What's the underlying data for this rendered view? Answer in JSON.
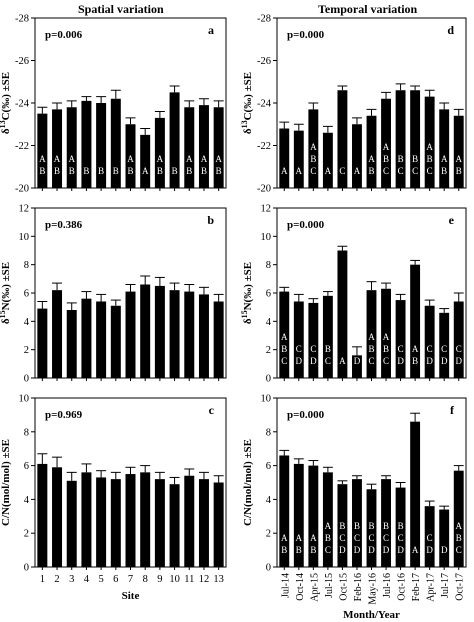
{
  "figure": {
    "left_title": "Spatial variation",
    "right_title": "Temporal variation",
    "left_xlabel": "Site",
    "right_xlabel": "Month/Year"
  },
  "chart_data": [
    {
      "id": "a",
      "type": "bar",
      "panel_label": "a",
      "pvalue": "p=0.006",
      "ylabel": "δ13C(‰) ±SE",
      "ylim": [
        -20,
        -28
      ],
      "inverted_y": true,
      "yticks": [
        "-20",
        "-22",
        "-24",
        "-26",
        "-28"
      ],
      "categories": [
        "1",
        "2",
        "3",
        "4",
        "5",
        "6",
        "7",
        "8",
        "9",
        "10",
        "11",
        "12",
        "13"
      ],
      "values": [
        -23.5,
        -23.7,
        -23.8,
        -24.1,
        -24.0,
        -24.2,
        -23.0,
        -22.5,
        -23.3,
        -24.5,
        -23.8,
        -23.9,
        -23.8
      ],
      "errors": [
        0.3,
        0.3,
        0.3,
        0.2,
        0.3,
        0.4,
        0.3,
        0.3,
        0.3,
        0.3,
        0.3,
        0.3,
        0.3
      ],
      "group_letters": [
        "A B",
        "A B",
        "A B",
        "B",
        "B",
        "B",
        "A B",
        "A",
        "A B",
        "B",
        "A B",
        "A B",
        "A B"
      ]
    },
    {
      "id": "b",
      "type": "bar",
      "panel_label": "b",
      "pvalue": "p=0.386",
      "ylabel": "δ15N(‰) ±SE",
      "ylim": [
        0,
        12
      ],
      "yticks": [
        "0",
        "2",
        "4",
        "6",
        "8",
        "10",
        "12"
      ],
      "categories": [
        "1",
        "2",
        "3",
        "4",
        "5",
        "6",
        "7",
        "8",
        "9",
        "10",
        "11",
        "12",
        "13"
      ],
      "values": [
        4.9,
        6.2,
        4.8,
        5.6,
        5.4,
        5.1,
        6.1,
        6.6,
        6.5,
        6.2,
        6.1,
        5.9,
        5.4
      ],
      "errors": [
        0.5,
        0.5,
        0.5,
        0.5,
        0.5,
        0.4,
        0.5,
        0.6,
        0.6,
        0.5,
        0.5,
        0.5,
        0.5
      ],
      "group_letters": []
    },
    {
      "id": "c",
      "type": "bar",
      "panel_label": "c",
      "pvalue": "p=0.969",
      "ylabel": "C/N(mol/mol) ±SE",
      "ylim": [
        0,
        10
      ],
      "yticks": [
        "0",
        "2",
        "4",
        "6",
        "8",
        "10"
      ],
      "categories": [
        "1",
        "2",
        "3",
        "4",
        "5",
        "6",
        "7",
        "8",
        "9",
        "10",
        "11",
        "12",
        "13"
      ],
      "values": [
        6.1,
        5.9,
        5.1,
        5.6,
        5.3,
        5.2,
        5.5,
        5.6,
        5.2,
        4.9,
        5.4,
        5.2,
        5.0
      ],
      "errors": [
        0.6,
        0.6,
        0.5,
        0.5,
        0.4,
        0.4,
        0.4,
        0.4,
        0.4,
        0.4,
        0.4,
        0.4,
        0.4
      ],
      "group_letters": []
    },
    {
      "id": "d",
      "type": "bar",
      "panel_label": "d",
      "pvalue": "p=0.000",
      "ylabel": "δ13C(‰) ±SE",
      "ylim": [
        -20,
        -28
      ],
      "inverted_y": true,
      "yticks": [
        "-20",
        "-22",
        "-24",
        "-26",
        "-28"
      ],
      "categories": [
        "Jul-14",
        "Oct-14",
        "Apr-15",
        "Jul-15",
        "Oct-15",
        "Feb-16",
        "May-16",
        "Jul-16",
        "Oct-16",
        "Feb-17",
        "Apr-17",
        "Jul-17",
        "Oct-17"
      ],
      "values": [
        -22.8,
        -22.7,
        -23.7,
        -22.6,
        -24.6,
        -23.0,
        -23.4,
        -24.2,
        -24.6,
        -24.6,
        -24.3,
        -23.7,
        -23.4
      ],
      "errors": [
        0.3,
        0.3,
        0.3,
        0.3,
        0.2,
        0.3,
        0.3,
        0.3,
        0.3,
        0.2,
        0.3,
        0.3,
        0.3
      ],
      "group_letters": [
        "A",
        "A",
        "A B C",
        "A",
        "C",
        "A",
        "A B",
        "A B C",
        "B C",
        "B C",
        "A B C",
        "A B",
        "A B"
      ]
    },
    {
      "id": "e",
      "type": "bar",
      "panel_label": "e",
      "pvalue": "p=0.000",
      "ylabel": "δ15N(‰) ±SE",
      "ylim": [
        0,
        12
      ],
      "yticks": [
        "0",
        "2",
        "4",
        "6",
        "8",
        "10",
        "12"
      ],
      "categories": [
        "Jul-14",
        "Oct-14",
        "Apr-15",
        "Jul-15",
        "Oct-15",
        "Feb-16",
        "May-16",
        "Jul-16",
        "Oct-16",
        "Feb-17",
        "Apr-17",
        "Jul-17",
        "Oct-17"
      ],
      "values": [
        6.1,
        5.4,
        5.3,
        5.8,
        9.0,
        1.6,
        6.2,
        6.3,
        5.5,
        8.0,
        5.1,
        4.6,
        5.4
      ],
      "errors": [
        0.3,
        0.5,
        0.3,
        0.3,
        0.3,
        0.6,
        0.6,
        0.4,
        0.4,
        0.3,
        0.4,
        0.3,
        0.6
      ],
      "group_letters": [
        "A B C",
        "C D",
        "C D",
        "B C",
        "A",
        "D",
        "A B C",
        "A B C",
        "C D",
        "A B",
        "C D",
        "C D",
        "C D"
      ]
    },
    {
      "id": "f",
      "type": "bar",
      "panel_label": "f",
      "pvalue": "p=0.000",
      "ylabel": "C/N(mol/mol) ±SE",
      "ylim": [
        0,
        10
      ],
      "yticks": [
        "0",
        "2",
        "4",
        "6",
        "8",
        "10"
      ],
      "categories": [
        "Jul-14",
        "Oct-14",
        "Apr-15",
        "Jul-15",
        "Oct-15",
        "Feb-16",
        "May-16",
        "Jul-16",
        "Oct-16",
        "Feb-17",
        "Apr-17",
        "Jul-17",
        "Oct-17"
      ],
      "values": [
        6.6,
        6.1,
        6.0,
        5.6,
        4.9,
        5.2,
        4.6,
        5.2,
        4.7,
        8.6,
        3.6,
        3.4,
        5.7
      ],
      "errors": [
        0.3,
        0.3,
        0.3,
        0.3,
        0.2,
        0.2,
        0.3,
        0.2,
        0.3,
        0.5,
        0.3,
        0.2,
        0.3
      ],
      "group_letters": [
        "A B",
        "A B",
        "A B",
        "A B C",
        "B C D",
        "B C D",
        "B C D",
        "B C D",
        "B C D",
        "A",
        "C D",
        "D",
        "A B C"
      ]
    }
  ]
}
